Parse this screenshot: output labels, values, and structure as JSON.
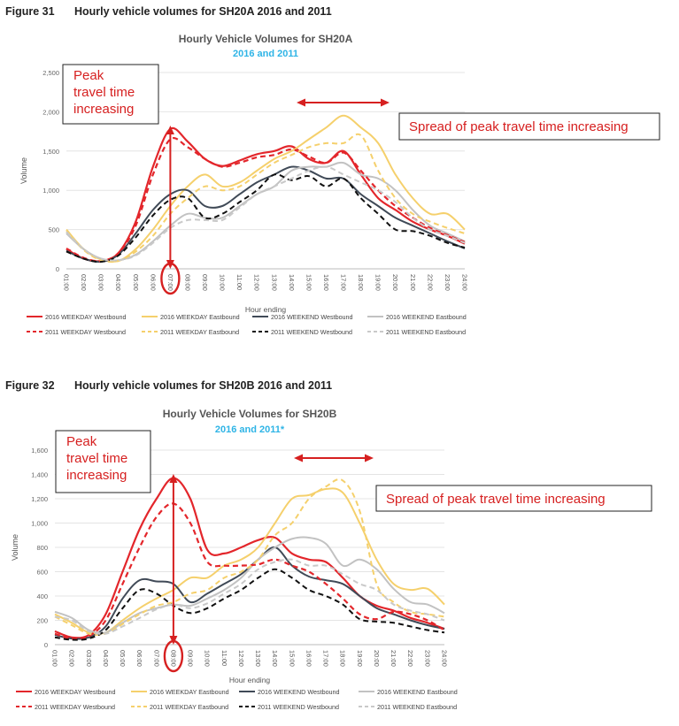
{
  "figures": [
    {
      "number": "Figure 31",
      "caption": "Hourly vehicle volumes for SH20A 2016 and 2011"
    },
    {
      "number": "Figure 32",
      "caption": "Hourly vehicle volumes for SH20B 2016 and 2011"
    }
  ],
  "colors": {
    "wd_west": "#e3262b",
    "wd_east": "#f5d06c",
    "we_west": "#404a57",
    "we_east": "#c2c2c2",
    "wd_west_2011": "#e3262b",
    "wd_east_2011": "#f5d06c",
    "we_west_2011": "#111111",
    "we_east_2011": "#c9c9c9",
    "subtitle": "#2eb4e6",
    "annotation": "#d62020"
  },
  "chart_data": [
    {
      "type": "line",
      "title": "Hourly Vehicle Volumes for SH20A",
      "subtitle": "2016 and 2011",
      "xlabel": "Hour ending",
      "ylabel": "Volume",
      "ylim": [
        0,
        2500
      ],
      "yticks": [
        "0",
        "500",
        "1,000",
        "1,500",
        "2,000",
        "2,500"
      ],
      "yticks_values": [
        0,
        500,
        1000,
        1500,
        2000,
        2500
      ],
      "categories": [
        "01:00",
        "02:00",
        "03:00",
        "04:00",
        "05:00",
        "06:00",
        "07:00",
        "08:00",
        "09:00",
        "10:00",
        "11:00",
        "12:00",
        "13:00",
        "14:00",
        "15:00",
        "16:00",
        "17:00",
        "18:00",
        "19:00",
        "20:00",
        "21:00",
        "22:00",
        "23:00",
        "24:00"
      ],
      "highlight_category": "07:00",
      "series": [
        {
          "name": "2016 WEEKDAY Westbound",
          "style": "solid",
          "colorKey": "wd_west",
          "values": [
            250,
            130,
            100,
            200,
            600,
            1300,
            1780,
            1620,
            1400,
            1310,
            1380,
            1460,
            1500,
            1560,
            1400,
            1350,
            1500,
            1200,
            900,
            750,
            600,
            500,
            420,
            320
          ]
        },
        {
          "name": "2016 WEEKDAY Eastbound",
          "style": "solid",
          "colorKey": "wd_east",
          "values": [
            500,
            250,
            120,
            100,
            250,
            500,
            800,
            1050,
            1200,
            1050,
            1100,
            1250,
            1400,
            1500,
            1650,
            1800,
            1950,
            1800,
            1600,
            1200,
            900,
            700,
            700,
            500
          ]
        },
        {
          "name": "2016 WEEKEND Westbound",
          "style": "solid",
          "colorKey": "we_west",
          "values": [
            230,
            130,
            90,
            180,
            450,
            750,
            950,
            1000,
            800,
            800,
            950,
            1100,
            1200,
            1300,
            1250,
            1150,
            1150,
            950,
            800,
            650,
            550,
            450,
            350,
            260
          ]
        },
        {
          "name": "2016 WEEKEND Eastbound",
          "style": "solid",
          "colorKey": "we_east",
          "values": [
            450,
            250,
            130,
            110,
            180,
            350,
            550,
            700,
            650,
            650,
            800,
            950,
            1050,
            1250,
            1300,
            1300,
            1350,
            1200,
            1150,
            1000,
            750,
            550,
            450,
            350
          ]
        },
        {
          "name": "2011 WEEKDAY Westbound",
          "style": "dashed",
          "colorKey": "wd_west_2011",
          "values": [
            260,
            140,
            100,
            200,
            550,
            1200,
            1650,
            1550,
            1400,
            1300,
            1350,
            1420,
            1450,
            1520,
            1430,
            1350,
            1480,
            1250,
            1000,
            800,
            650,
            520,
            430,
            340
          ]
        },
        {
          "name": "2011 WEEKDAY Eastbound",
          "style": "dashed",
          "colorKey": "wd_east_2011",
          "values": [
            480,
            240,
            110,
            100,
            220,
            420,
            700,
            900,
            1050,
            1000,
            1050,
            1200,
            1350,
            1450,
            1550,
            1600,
            1600,
            1700,
            1250,
            900,
            700,
            600,
            520,
            450
          ]
        },
        {
          "name": "2011 WEEKEND Westbound",
          "style": "dashed",
          "colorKey": "we_west_2011",
          "values": [
            220,
            130,
            90,
            170,
            400,
            680,
            880,
            900,
            650,
            700,
            850,
            1000,
            1200,
            1130,
            1180,
            1050,
            1150,
            900,
            700,
            500,
            480,
            420,
            330,
            270
          ]
        },
        {
          "name": "2011 WEEKEND Eastbound",
          "style": "dashed",
          "colorKey": "we_east_2011",
          "values": [
            470,
            250,
            130,
            110,
            170,
            330,
            520,
            620,
            620,
            620,
            780,
            950,
            1050,
            1150,
            1250,
            1300,
            1200,
            1100,
            1000,
            850,
            650,
            500,
            420,
            330
          ]
        }
      ]
    },
    {
      "type": "line",
      "title": "Hourly Vehicle Volumes for SH20B",
      "subtitle": "2016 and 2011*",
      "xlabel": "Hour ending",
      "ylabel": "Volume",
      "ylim": [
        0,
        1600
      ],
      "yticks": [
        "0",
        "200",
        "400",
        "600",
        "800",
        "1,000",
        "1,200",
        "1,400",
        "1,600"
      ],
      "yticks_values": [
        0,
        200,
        400,
        600,
        800,
        1000,
        1200,
        1400,
        1600
      ],
      "categories": [
        "01:00",
        "02:00",
        "03:00",
        "04:00",
        "05:00",
        "06:00",
        "07:00",
        "08:00",
        "09:00",
        "10:00",
        "11:00",
        "12:00",
        "13:00",
        "14:00",
        "15:00",
        "16:00",
        "17:00",
        "18:00",
        "19:00",
        "20:00",
        "21:00",
        "22:00",
        "23:00",
        "24:00"
      ],
      "highlight_category": "08:00",
      "series": [
        {
          "name": "2016 WEEKDAY Westbound",
          "style": "solid",
          "colorKey": "wd_west",
          "values": [
            110,
            60,
            80,
            250,
            600,
            950,
            1200,
            1370,
            1200,
            780,
            750,
            800,
            860,
            880,
            750,
            700,
            680,
            550,
            400,
            320,
            280,
            220,
            180,
            130
          ]
        },
        {
          "name": "2016 WEEKDAY Eastbound",
          "style": "solid",
          "colorKey": "wd_east",
          "values": [
            250,
            180,
            100,
            100,
            200,
            300,
            380,
            450,
            550,
            550,
            650,
            700,
            800,
            1000,
            1200,
            1230,
            1280,
            1250,
            1000,
            700,
            500,
            450,
            460,
            330
          ]
        },
        {
          "name": "2016 WEEKEND Westbound",
          "style": "solid",
          "colorKey": "we_west",
          "values": [
            80,
            50,
            60,
            150,
            380,
            530,
            520,
            500,
            350,
            420,
            500,
            580,
            700,
            800,
            650,
            560,
            530,
            500,
            400,
            300,
            250,
            200,
            160,
            130
          ]
        },
        {
          "name": "2016 WEEKEND Eastbound",
          "style": "solid",
          "colorKey": "we_east",
          "values": [
            270,
            220,
            120,
            100,
            180,
            260,
            300,
            330,
            320,
            380,
            450,
            550,
            700,
            800,
            870,
            880,
            830,
            650,
            700,
            620,
            460,
            350,
            330,
            260
          ]
        },
        {
          "name": "2011 WEEKDAY Westbound",
          "style": "dashed",
          "colorKey": "wd_west_2011",
          "values": [
            90,
            50,
            70,
            200,
            500,
            800,
            1050,
            1160,
            1000,
            680,
            650,
            650,
            660,
            700,
            650,
            600,
            500,
            380,
            250,
            210,
            270,
            250,
            200,
            120
          ]
        },
        {
          "name": "2011 WEEKDAY Eastbound",
          "style": "dashed",
          "colorKey": "wd_east_2011",
          "values": [
            230,
            160,
            90,
            90,
            170,
            250,
            320,
            350,
            420,
            450,
            550,
            600,
            700,
            900,
            1000,
            1200,
            1300,
            1350,
            1100,
            500,
            350,
            270,
            250,
            230
          ]
        },
        {
          "name": "2011 WEEKEND Westbound",
          "style": "dashed",
          "colorKey": "we_west_2011",
          "values": [
            60,
            40,
            50,
            120,
            300,
            450,
            420,
            320,
            260,
            300,
            380,
            450,
            550,
            620,
            550,
            450,
            400,
            330,
            210,
            190,
            180,
            150,
            120,
            100
          ]
        },
        {
          "name": "2011 WEEKEND Eastbound",
          "style": "dashed",
          "colorKey": "we_east_2011",
          "values": [
            230,
            200,
            110,
            90,
            150,
            220,
            290,
            330,
            300,
            340,
            420,
            500,
            620,
            680,
            700,
            650,
            650,
            580,
            500,
            450,
            330,
            280,
            250,
            200
          ]
        }
      ]
    }
  ],
  "annotations": [
    {
      "peak_label": "Peak\ntravel time\nincreasing",
      "spread_label": "Spread of peak travel time increasing"
    },
    {
      "peak_label": "Peak\ntravel time\nincreasing",
      "spread_label": "Spread of peak travel time increasing"
    }
  ]
}
